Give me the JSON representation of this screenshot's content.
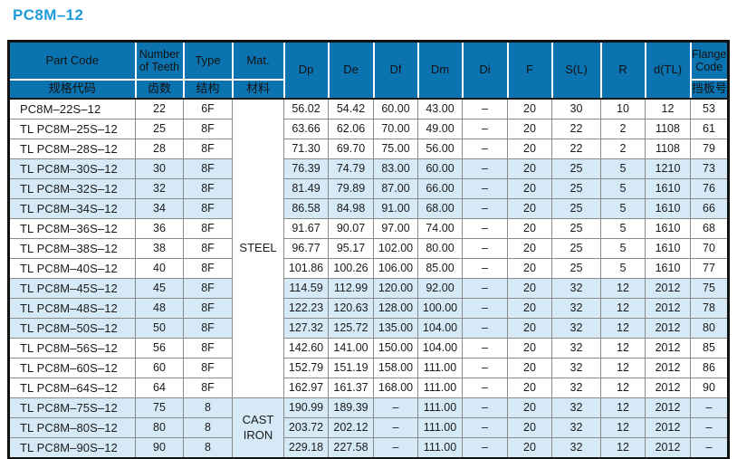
{
  "page_title": "PC8M–12",
  "colors": {
    "title_text": "#1e9cd9",
    "header_background": "#0b74b0",
    "header_text": "#111111",
    "shaded_row_background": "#d5eaf6",
    "body_text": "#1a1a1a",
    "grid_line": "#8a8a8a",
    "outer_border": "#111111"
  },
  "table": {
    "columns": [
      {
        "key": "part_code",
        "en": "Part Code",
        "zh": "规格代码"
      },
      {
        "key": "teeth",
        "en": "Number of Teeth",
        "zh": "齿数"
      },
      {
        "key": "type",
        "en": "Type",
        "zh": "结构"
      },
      {
        "key": "mat",
        "en": "Mat.",
        "zh": "材料"
      },
      {
        "key": "dp",
        "en": "Dp"
      },
      {
        "key": "de",
        "en": "De"
      },
      {
        "key": "df",
        "en": "Df"
      },
      {
        "key": "dm",
        "en": "Dm"
      },
      {
        "key": "di",
        "en": "Di"
      },
      {
        "key": "f",
        "en": "F"
      },
      {
        "key": "sl",
        "en": "S(L)"
      },
      {
        "key": "r",
        "en": "R"
      },
      {
        "key": "dtl",
        "en": "d(TL)"
      },
      {
        "key": "flange",
        "en": "Flange Code",
        "zh": "挡板号"
      }
    ],
    "materials": [
      {
        "label": "STEEL",
        "rows": 15,
        "shaded": false
      },
      {
        "label": "CAST IRON",
        "rows": 3,
        "shaded": true
      }
    ],
    "rows": [
      {
        "part_code": "PC8M–22S–12",
        "teeth": "22",
        "type": "6F",
        "dp": "56.02",
        "de": "54.42",
        "df": "60.00",
        "dm": "43.00",
        "di": "–",
        "f": "20",
        "sl": "30",
        "r": "10",
        "dtl": "12",
        "flange": "53",
        "shaded": false
      },
      {
        "part_code": "TL PC8M–25S–12",
        "teeth": "25",
        "type": "8F",
        "dp": "63.66",
        "de": "62.06",
        "df": "70.00",
        "dm": "49.00",
        "di": "–",
        "f": "20",
        "sl": "22",
        "r": "2",
        "dtl": "1108",
        "flange": "61",
        "shaded": false
      },
      {
        "part_code": "TL PC8M–28S–12",
        "teeth": "28",
        "type": "8F",
        "dp": "71.30",
        "de": "69.70",
        "df": "75.00",
        "dm": "56.00",
        "di": "–",
        "f": "20",
        "sl": "22",
        "r": "2",
        "dtl": "1108",
        "flange": "79",
        "shaded": false
      },
      {
        "part_code": "TL PC8M–30S–12",
        "teeth": "30",
        "type": "8F",
        "dp": "76.39",
        "de": "74.79",
        "df": "83.00",
        "dm": "60.00",
        "di": "–",
        "f": "20",
        "sl": "25",
        "r": "5",
        "dtl": "1210",
        "flange": "73",
        "shaded": true
      },
      {
        "part_code": "TL PC8M–32S–12",
        "teeth": "32",
        "type": "8F",
        "dp": "81.49",
        "de": "79.89",
        "df": "87.00",
        "dm": "66.00",
        "di": "–",
        "f": "20",
        "sl": "25",
        "r": "5",
        "dtl": "1610",
        "flange": "76",
        "shaded": true
      },
      {
        "part_code": "TL PC8M–34S–12",
        "teeth": "34",
        "type": "8F",
        "dp": "86.58",
        "de": "84.98",
        "df": "91.00",
        "dm": "68.00",
        "di": "–",
        "f": "20",
        "sl": "25",
        "r": "5",
        "dtl": "1610",
        "flange": "66",
        "shaded": true
      },
      {
        "part_code": "TL PC8M–36S–12",
        "teeth": "36",
        "type": "8F",
        "dp": "91.67",
        "de": "90.07",
        "df": "97.00",
        "dm": "74.00",
        "di": "–",
        "f": "20",
        "sl": "25",
        "r": "5",
        "dtl": "1610",
        "flange": "68",
        "shaded": false
      },
      {
        "part_code": "TL PC8M–38S–12",
        "teeth": "38",
        "type": "8F",
        "dp": "96.77",
        "de": "95.17",
        "df": "102.00",
        "dm": "80.00",
        "di": "–",
        "f": "20",
        "sl": "25",
        "r": "5",
        "dtl": "1610",
        "flange": "70",
        "shaded": false
      },
      {
        "part_code": "TL PC8M–40S–12",
        "teeth": "40",
        "type": "8F",
        "dp": "101.86",
        "de": "100.26",
        "df": "106.00",
        "dm": "85.00",
        "di": "–",
        "f": "20",
        "sl": "25",
        "r": "5",
        "dtl": "1610",
        "flange": "77",
        "shaded": false
      },
      {
        "part_code": "TL PC8M–45S–12",
        "teeth": "45",
        "type": "8F",
        "dp": "114.59",
        "de": "112.99",
        "df": "120.00",
        "dm": "92.00",
        "di": "–",
        "f": "20",
        "sl": "32",
        "r": "12",
        "dtl": "2012",
        "flange": "75",
        "shaded": true
      },
      {
        "part_code": "TL PC8M–48S–12",
        "teeth": "48",
        "type": "8F",
        "dp": "122.23",
        "de": "120.63",
        "df": "128.00",
        "dm": "100.00",
        "di": "–",
        "f": "20",
        "sl": "32",
        "r": "12",
        "dtl": "2012",
        "flange": "78",
        "shaded": true
      },
      {
        "part_code": "TL PC8M–50S–12",
        "teeth": "50",
        "type": "8F",
        "dp": "127.32",
        "de": "125.72",
        "df": "135.00",
        "dm": "104.00",
        "di": "–",
        "f": "20",
        "sl": "32",
        "r": "12",
        "dtl": "2012",
        "flange": "80",
        "shaded": true
      },
      {
        "part_code": "TL PC8M–56S–12",
        "teeth": "56",
        "type": "8F",
        "dp": "142.60",
        "de": "141.00",
        "df": "150.00",
        "dm": "104.00",
        "di": "–",
        "f": "20",
        "sl": "32",
        "r": "12",
        "dtl": "2012",
        "flange": "85",
        "shaded": false
      },
      {
        "part_code": "TL PC8M–60S–12",
        "teeth": "60",
        "type": "8F",
        "dp": "152.79",
        "de": "151.19",
        "df": "158.00",
        "dm": "111.00",
        "di": "–",
        "f": "20",
        "sl": "32",
        "r": "12",
        "dtl": "2012",
        "flange": "86",
        "shaded": false
      },
      {
        "part_code": "TL PC8M–64S–12",
        "teeth": "64",
        "type": "8F",
        "dp": "162.97",
        "de": "161.37",
        "df": "168.00",
        "dm": "111.00",
        "di": "–",
        "f": "20",
        "sl": "32",
        "r": "12",
        "dtl": "2012",
        "flange": "90",
        "shaded": false
      },
      {
        "part_code": "TL PC8M–75S–12",
        "teeth": "75",
        "type": "8",
        "dp": "190.99",
        "de": "189.39",
        "df": "–",
        "dm": "111.00",
        "di": "–",
        "f": "20",
        "sl": "32",
        "r": "12",
        "dtl": "2012",
        "flange": "–",
        "shaded": true
      },
      {
        "part_code": "TL PC8M–80S–12",
        "teeth": "80",
        "type": "8",
        "dp": "203.72",
        "de": "202.12",
        "df": "–",
        "dm": "111.00",
        "di": "–",
        "f": "20",
        "sl": "32",
        "r": "12",
        "dtl": "2012",
        "flange": "–",
        "shaded": true
      },
      {
        "part_code": "TL PC8M–90S–12",
        "teeth": "90",
        "type": "8",
        "dp": "229.18",
        "de": "227.58",
        "df": "–",
        "dm": "111.00",
        "di": "–",
        "f": "20",
        "sl": "32",
        "r": "12",
        "dtl": "2012",
        "flange": "–",
        "shaded": true
      }
    ]
  }
}
